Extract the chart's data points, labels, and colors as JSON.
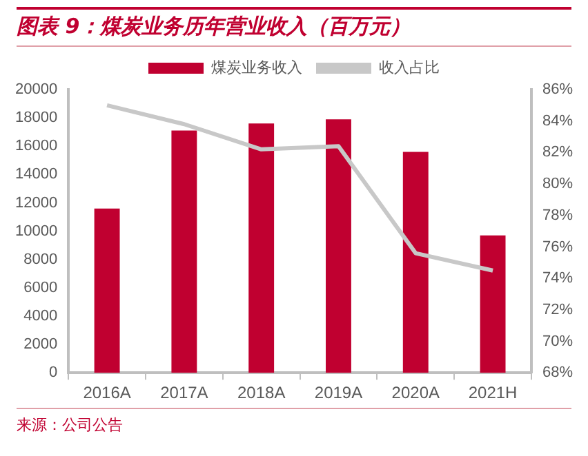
{
  "chart_data": {
    "type": "bar",
    "title": "图表 9：煤炭业务历年营业收入（百万元）",
    "annotations": [
      "来源：公司公告"
    ],
    "categories": [
      "2016A",
      "2017A",
      "2018A",
      "2019A",
      "2020A",
      "2021H"
    ],
    "series": [
      {
        "name": "煤炭业务收入",
        "color": "#c00030",
        "values": [
          11600,
          17100,
          17600,
          17900,
          15600,
          9700
        ]
      },
      {
        "name": "收入占比",
        "type": "line",
        "axis": "y2",
        "color": "#c8c8c8",
        "values": [
          85.0,
          83.8,
          82.2,
          82.4,
          75.6,
          74.5
        ]
      }
    ],
    "ylim": [
      0,
      20000
    ],
    "yticks": [
      0,
      2000,
      4000,
      6000,
      8000,
      10000,
      12000,
      14000,
      16000,
      18000,
      20000
    ],
    "y2lim": [
      68,
      86
    ],
    "y2ticks": [
      {
        "value": 68,
        "label": "68%"
      },
      {
        "value": 70,
        "label": "70%"
      },
      {
        "value": 72,
        "label": "72%"
      },
      {
        "value": 74,
        "label": "74%"
      },
      {
        "value": 76,
        "label": "76%"
      },
      {
        "value": 78,
        "label": "78%"
      },
      {
        "value": 80,
        "label": "80%"
      },
      {
        "value": 82,
        "label": "82%"
      },
      {
        "value": 84,
        "label": "84%"
      },
      {
        "value": 86,
        "label": "86%"
      }
    ],
    "legend": "top",
    "grid": false,
    "marker": "none",
    "line_style": "solid"
  }
}
